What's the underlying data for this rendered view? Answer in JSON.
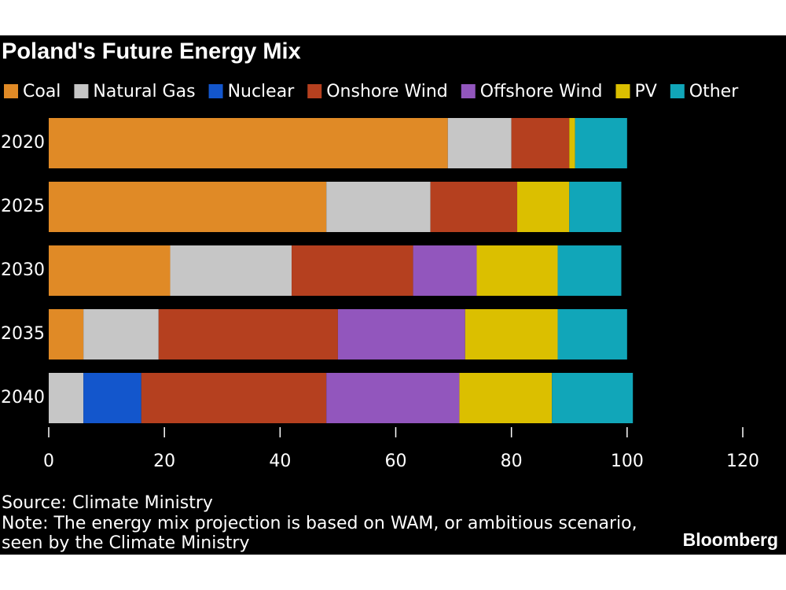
{
  "chart_data": {
    "type": "stacked-bar",
    "orientation": "horizontal",
    "title": "Poland's Future Energy Mix",
    "categories": [
      "2020",
      "2025",
      "2030",
      "2035",
      "2040"
    ],
    "series": [
      {
        "name": "Coal",
        "color": "#e08a26",
        "values": [
          69,
          48,
          21,
          6,
          0
        ]
      },
      {
        "name": "Natural Gas",
        "color": "#c6c6c6",
        "values": [
          11,
          18,
          21,
          13,
          6
        ]
      },
      {
        "name": "Nuclear",
        "color": "#1356cc",
        "values": [
          0,
          0,
          0,
          0,
          10
        ]
      },
      {
        "name": "Onshore Wind",
        "color": "#b5401f",
        "values": [
          10,
          15,
          21,
          31,
          32
        ]
      },
      {
        "name": "Offshore Wind",
        "color": "#9256bd",
        "values": [
          0,
          0,
          11,
          22,
          23
        ]
      },
      {
        "name": "PV",
        "color": "#dbbf00",
        "values": [
          1,
          9,
          14,
          16,
          16
        ]
      },
      {
        "name": "Other",
        "color": "#11a6b9",
        "values": [
          9,
          9,
          11,
          12,
          14
        ]
      }
    ],
    "xlim": [
      0,
      120
    ],
    "xticks": [
      0,
      20,
      40,
      60,
      80,
      100,
      120
    ],
    "source": "Source: Climate Ministry",
    "note": [
      "Note: The energy mix projection is based on WAM, or ambitious scenario,",
      "seen by the Climate Ministry"
    ],
    "brand": "Bloomberg"
  }
}
